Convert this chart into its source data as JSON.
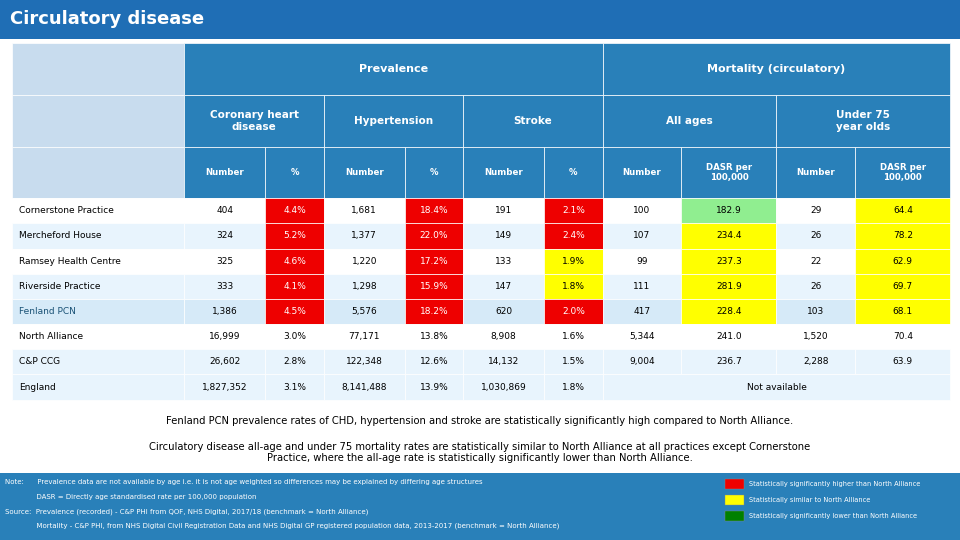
{
  "title": "Circulatory disease",
  "title_bg": "#1F6EB5",
  "title_color": "#FFFFFF",
  "header_bg": "#2980B9",
  "header_color": "#FFFFFF",
  "prevalence_header": "Prevalence",
  "mortality_header": "Mortality (circulatory)",
  "col_labels": [
    "Number",
    "%",
    "Number",
    "%",
    "Number",
    "%",
    "Number",
    "DASR per\n100,000",
    "Number",
    "DASR per\n100,000"
  ],
  "row_labels": [
    "Cornerstone Practice",
    "Mercheford House",
    "Ramsey Health Centre",
    "Riverside Practice",
    "Fenland PCN",
    "North Alliance",
    "C&P CCG",
    "England"
  ],
  "table_data": [
    [
      "404",
      "4.4%",
      "1,681",
      "18.4%",
      "191",
      "2.1%",
      "100",
      "182.9",
      "29",
      "64.4"
    ],
    [
      "324",
      "5.2%",
      "1,377",
      "22.0%",
      "149",
      "2.4%",
      "107",
      "234.4",
      "26",
      "78.2"
    ],
    [
      "325",
      "4.6%",
      "1,220",
      "17.2%",
      "133",
      "1.9%",
      "99",
      "237.3",
      "22",
      "62.9"
    ],
    [
      "333",
      "4.1%",
      "1,298",
      "15.9%",
      "147",
      "1.8%",
      "111",
      "281.9",
      "26",
      "69.7"
    ],
    [
      "1,386",
      "4.5%",
      "5,576",
      "18.2%",
      "620",
      "2.0%",
      "417",
      "228.4",
      "103",
      "68.1"
    ],
    [
      "16,999",
      "3.0%",
      "77,171",
      "13.8%",
      "8,908",
      "1.6%",
      "5,344",
      "241.0",
      "1,520",
      "70.4"
    ],
    [
      "26,602",
      "2.8%",
      "122,348",
      "12.6%",
      "14,132",
      "1.5%",
      "9,004",
      "236.7",
      "2,288",
      "63.9"
    ],
    [
      "1,827,352",
      "3.1%",
      "8,141,488",
      "13.9%",
      "1,030,869",
      "1.8%",
      "",
      "Not available",
      "",
      ""
    ]
  ],
  "cell_colors": {
    "0,1": "#EE0000",
    "0,3": "#EE0000",
    "0,5": "#EE0000",
    "0,7": "#90EE90",
    "0,9": "#FFFF00",
    "1,1": "#EE0000",
    "1,3": "#EE0000",
    "1,5": "#EE0000",
    "1,7": "#FFFF00",
    "1,9": "#FFFF00",
    "2,1": "#EE0000",
    "2,3": "#EE0000",
    "2,5": "#FFFF00",
    "2,7": "#FFFF00",
    "2,9": "#FFFF00",
    "3,1": "#EE0000",
    "3,3": "#EE0000",
    "3,5": "#FFFF00",
    "3,7": "#FFFF00",
    "3,9": "#FFFF00",
    "4,1": "#EE0000",
    "4,3": "#EE0000",
    "4,5": "#EE0000",
    "4,7": "#FFFF00",
    "4,9": "#FFFF00"
  },
  "cell_text_colors": {
    "0,1": "#FFFFFF",
    "0,3": "#FFFFFF",
    "0,5": "#FFFFFF",
    "1,1": "#FFFFFF",
    "1,3": "#FFFFFF",
    "1,5": "#FFFFFF",
    "2,1": "#FFFFFF",
    "2,3": "#FFFFFF",
    "3,1": "#FFFFFF",
    "3,3": "#FFFFFF",
    "4,1": "#FFFFFF",
    "4,3": "#FFFFFF",
    "4,5": "#FFFFFF"
  },
  "row_bg_colors": [
    "#FFFFFF",
    "#E8F4FD",
    "#FFFFFF",
    "#E8F4FD",
    "#D6EAF8",
    "#FFFFFF",
    "#E8F4FD",
    "#E8F4FD"
  ],
  "fenland_label_color": "#1a5276",
  "legend_items": [
    {
      "color": "#EE0000",
      "text": "Statistically significantly higher than North Alliance"
    },
    {
      "color": "#FFFF00",
      "text": "Statistically similar to North Alliance"
    },
    {
      "color": "#008000",
      "text": "Statistically significantly lower than North Alliance"
    }
  ],
  "text1": "Fenland PCN prevalence rates of CHD, hypertension and stroke are statistically significantly high compared to North Alliance.",
  "text2": "Circulatory disease all-age and under 75 mortality rates are statistically similar to North Alliance at all practices except Cornerstone\nPractice, where the all-age rate is statistically significantly lower than North Alliance.",
  "note_line1": "Note:      Prevalence data are not available by age i.e. it is not age weighted so differences may be explained by differing age structures",
  "note_line2": "              DASR = Directly age standardised rate per 100,000 population",
  "note_line3": "Source:  Prevalence (recorded) - C&P PHI from QOF, NHS Digital, 2017/18 (benchmark = North Alliance)",
  "note_line4": "              Mortality - C&P PHI, from NHS Digital Civil Registration Data and NHS Digital GP registered population data, 2013-2017 (benchmark = North Alliance)",
  "bg_color": "#FFFFFF",
  "table_outer_bg": "#C8DCEE",
  "note_bg": "#2980B9"
}
